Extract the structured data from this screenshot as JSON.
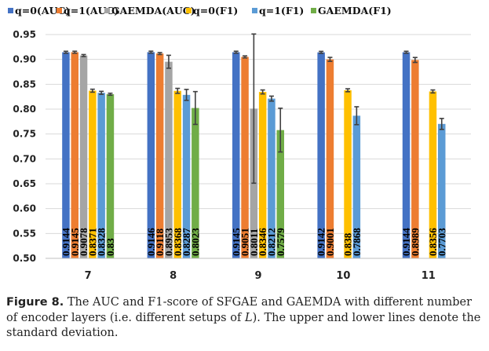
{
  "chart_data": {
    "type": "bar",
    "categories": [
      "7",
      "8",
      "9",
      "10",
      "11"
    ],
    "ylim": [
      0.5,
      0.95
    ],
    "yticks": [
      "0.50",
      "0.55",
      "0.60",
      "0.65",
      "0.70",
      "0.75",
      "0.80",
      "0.85",
      "0.90",
      "0.95"
    ],
    "grid": true,
    "legend_position": "top",
    "series": [
      {
        "name": "q=0(AUC)",
        "color": "#4472c4",
        "values": [
          0.9144,
          0.9146,
          0.9145,
          0.9142,
          0.9144
        ],
        "labels": [
          "0.9144",
          "0.9146",
          "0.9145",
          "0.9142",
          "0.9144"
        ],
        "errors": [
          0.002,
          0.002,
          0.002,
          0.002,
          0.002
        ]
      },
      {
        "name": "q=1(AUC)",
        "color": "#ed7d31",
        "values": [
          0.9145,
          0.9118,
          0.9051,
          0.9001,
          0.8989
        ],
        "labels": [
          "0.9145",
          "0.9118",
          "0.9051",
          "0.9001",
          "0.8989"
        ],
        "errors": [
          0.002,
          0.002,
          0.002,
          0.004,
          0.005
        ]
      },
      {
        "name": "GAEMDA(AUC)",
        "color": "#a5a5a5",
        "values": [
          0.9078,
          0.8953,
          0.8011,
          null,
          null
        ],
        "labels": [
          "0.9078",
          "0.8953",
          "0.8011",
          "",
          ""
        ],
        "errors": [
          0.002,
          0.013,
          0.15,
          null,
          null
        ]
      },
      {
        "name": "q=0(F1)",
        "color": "#ffc000",
        "values": [
          0.8371,
          0.8368,
          0.8346,
          0.838,
          0.8356
        ],
        "labels": [
          "0.8371",
          "0.8368",
          "0.8346",
          "0.838",
          "0.8356"
        ],
        "errors": [
          0.003,
          0.005,
          0.004,
          0.003,
          0.003
        ]
      },
      {
        "name": "q=1(F1)",
        "color": "#5b9bd5",
        "values": [
          0.8328,
          0.8287,
          0.8212,
          0.7868,
          0.7703
        ],
        "labels": [
          "0.8328",
          "0.8287",
          "0.8212",
          "0.7868",
          "0.7703"
        ],
        "errors": [
          0.003,
          0.011,
          0.005,
          0.018,
          0.011
        ]
      },
      {
        "name": "GAEMDA(F1)",
        "color": "#70ad47",
        "values": [
          0.83,
          0.8023,
          0.7579,
          null,
          null
        ],
        "labels": [
          "0.83",
          "0.8023",
          "0.7579",
          "",
          ""
        ],
        "errors": [
          0.002,
          0.033,
          0.044,
          null,
          null
        ]
      }
    ]
  },
  "caption": {
    "label": "Figure 8.",
    "text_before_italic": " The AUC and F1-score of SFGAE and GAEMDA with different number of encoder layers (i.e. different setups of ",
    "italic": "L",
    "text_after_italic": "). The upper and lower lines denote the standard deviation."
  }
}
